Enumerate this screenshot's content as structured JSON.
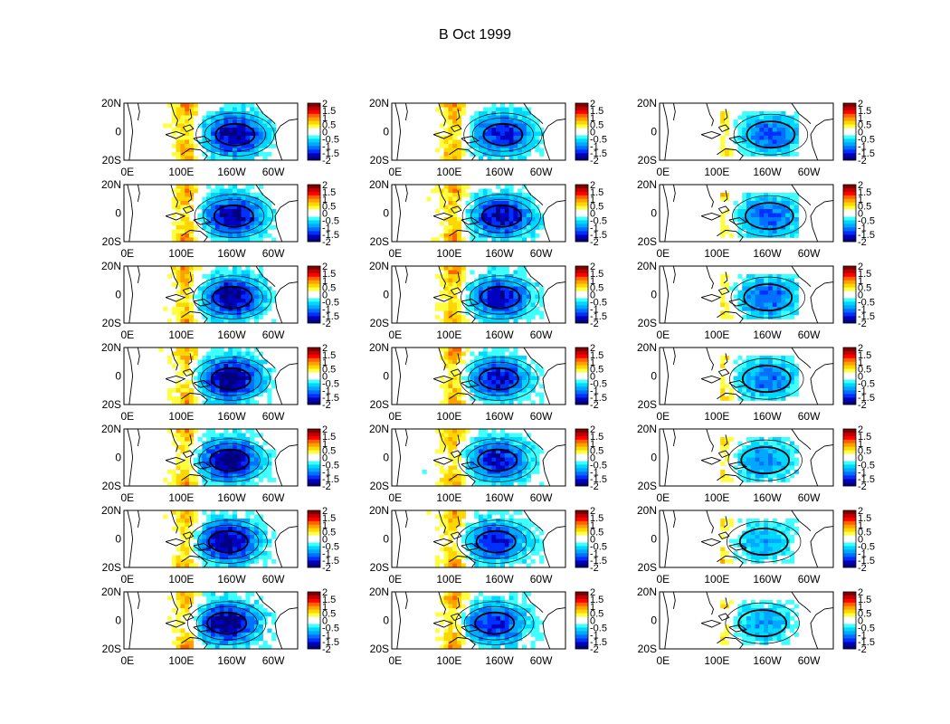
{
  "title": "B Oct 1999",
  "chart_data": {
    "type": "heatmap",
    "title": "B Oct 1999",
    "layout": {
      "rows": 7,
      "columns": 3
    },
    "x_tick_labels": [
      "0E",
      "100E",
      "160W",
      "60W"
    ],
    "y_tick_labels": [
      "20N",
      "0",
      "20S"
    ],
    "colorbar": {
      "range": [
        -2,
        2
      ],
      "tick_labels": [
        "2",
        "1.5",
        "1",
        "0.5",
        "0",
        "-0.5",
        "-1",
        "-1.5",
        "-2"
      ],
      "colors": [
        "#7f0000",
        "#bf0000",
        "#ff0000",
        "#ff6000",
        "#ffa000",
        "#ffd700",
        "#ffff40",
        "#ffffff",
        "#ffffff",
        "#40ffff",
        "#00d8ff",
        "#00a8ff",
        "#0070ff",
        "#0030ff",
        "#0000c0",
        "#00007f"
      ]
    },
    "panels": [
      {
        "row": 1,
        "col": 1,
        "cold_min": -1.9,
        "warm_max": 1.0
      },
      {
        "row": 1,
        "col": 2,
        "cold_min": -1.6,
        "warm_max": 1.0
      },
      {
        "row": 1,
        "col": 3,
        "cold_min": -1.3,
        "warm_max": 0.7
      },
      {
        "row": 2,
        "col": 1,
        "cold_min": -1.8,
        "warm_max": 1.0
      },
      {
        "row": 2,
        "col": 2,
        "cold_min": -1.8,
        "warm_max": 1.0
      },
      {
        "row": 2,
        "col": 3,
        "cold_min": -1.3,
        "warm_max": 0.7
      },
      {
        "row": 3,
        "col": 1,
        "cold_min": -1.9,
        "warm_max": 1.0
      },
      {
        "row": 3,
        "col": 2,
        "cold_min": -1.7,
        "warm_max": 1.0
      },
      {
        "row": 3,
        "col": 3,
        "cold_min": -1.3,
        "warm_max": 0.7
      },
      {
        "row": 4,
        "col": 1,
        "cold_min": -2.0,
        "warm_max": 1.0
      },
      {
        "row": 4,
        "col": 2,
        "cold_min": -1.7,
        "warm_max": 1.0
      },
      {
        "row": 4,
        "col": 3,
        "cold_min": -1.2,
        "warm_max": 0.7
      },
      {
        "row": 5,
        "col": 1,
        "cold_min": -2.0,
        "warm_max": 1.0
      },
      {
        "row": 5,
        "col": 2,
        "cold_min": -1.7,
        "warm_max": 1.0
      },
      {
        "row": 5,
        "col": 3,
        "cold_min": -1.0,
        "warm_max": 0.7
      },
      {
        "row": 6,
        "col": 1,
        "cold_min": -2.0,
        "warm_max": 1.0
      },
      {
        "row": 6,
        "col": 2,
        "cold_min": -1.6,
        "warm_max": 1.0
      },
      {
        "row": 6,
        "col": 3,
        "cold_min": -0.9,
        "warm_max": 0.7
      },
      {
        "row": 7,
        "col": 1,
        "cold_min": -2.0,
        "warm_max": 1.0
      },
      {
        "row": 7,
        "col": 2,
        "cold_min": -1.6,
        "warm_max": 1.0
      },
      {
        "row": 7,
        "col": 3,
        "cold_min": -0.9,
        "warm_max": 0.7
      }
    ]
  }
}
